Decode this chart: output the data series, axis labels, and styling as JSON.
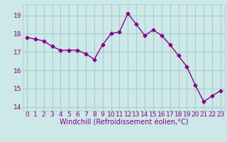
{
  "x": [
    0,
    1,
    2,
    3,
    4,
    5,
    6,
    7,
    8,
    9,
    10,
    11,
    12,
    13,
    14,
    15,
    16,
    17,
    18,
    19,
    20,
    21,
    22,
    23
  ],
  "y": [
    17.8,
    17.7,
    17.6,
    17.3,
    17.1,
    17.1,
    17.1,
    16.9,
    16.6,
    17.4,
    18.0,
    18.1,
    19.1,
    18.5,
    17.9,
    18.2,
    17.9,
    17.4,
    16.8,
    16.2,
    15.2,
    14.3,
    14.6,
    14.9
  ],
  "line_color": "#880088",
  "marker": "D",
  "marker_size": 2.5,
  "line_width": 1.0,
  "bg_color": "#cce8e8",
  "grid_color": "#aacccc",
  "xlabel": "Windchill (Refroidissement éolien,°C)",
  "xlabel_fontsize": 7,
  "tick_fontsize": 6.5,
  "xlim": [
    -0.5,
    23.5
  ],
  "ylim": [
    13.8,
    19.6
  ],
  "yticks": [
    14,
    15,
    16,
    17,
    18,
    19
  ],
  "xticks": [
    0,
    1,
    2,
    3,
    4,
    5,
    6,
    7,
    8,
    9,
    10,
    11,
    12,
    13,
    14,
    15,
    16,
    17,
    18,
    19,
    20,
    21,
    22,
    23
  ]
}
